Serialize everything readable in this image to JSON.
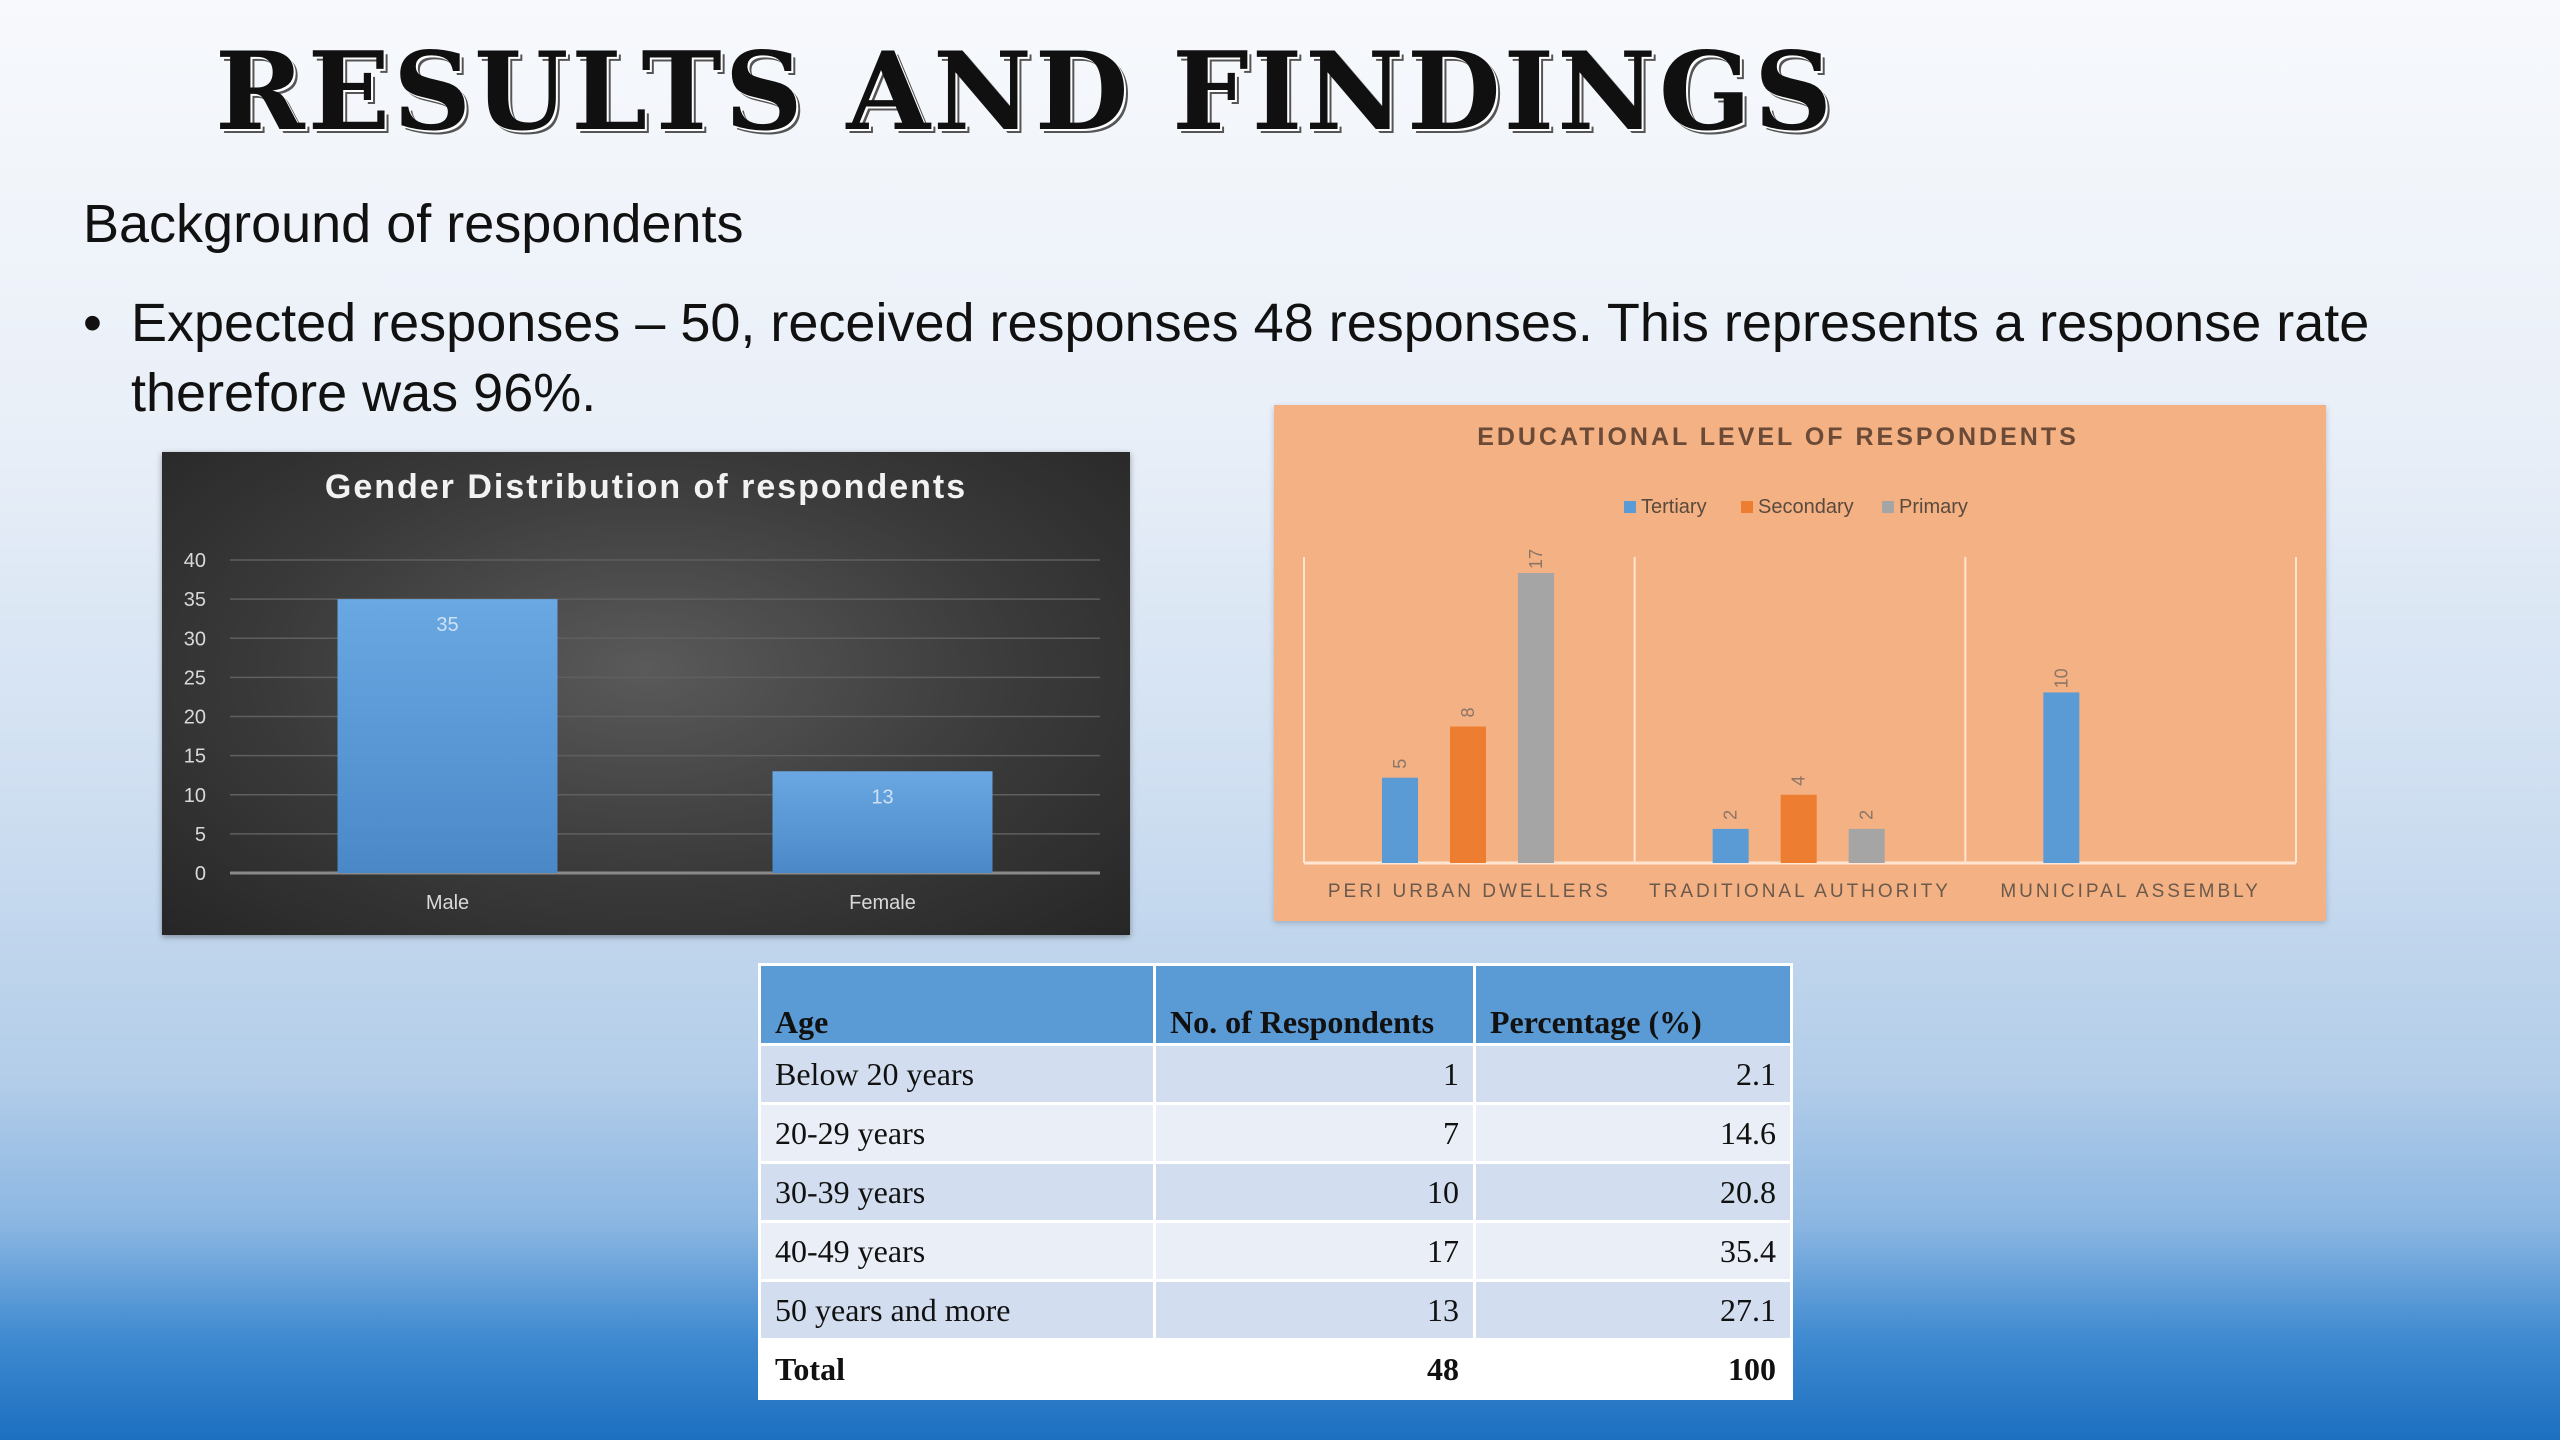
{
  "slide": {
    "title": "Results and Findings",
    "subheading": "Background of respondents",
    "bullet_marker": "•",
    "bullet_text": "Expected responses – 50, received responses 48 responses. This represents a response rate therefore was 96%."
  },
  "colors": {
    "bar_blue": "#5b9bd5",
    "secondary_orange": "#ed7d31",
    "primary_gray": "#a5a5a5",
    "orange_panel": "#f4b183",
    "table_header": "#5b9bd5"
  },
  "chart_data": [
    {
      "type": "bar",
      "title": "Gender Distribution of respondents",
      "categories": [
        "Male",
        "Female"
      ],
      "values": [
        35,
        13
      ],
      "data_labels": [
        "35",
        "13"
      ],
      "ylim": [
        0,
        40
      ],
      "yticks": [
        "0",
        "5",
        "10",
        "15",
        "20",
        "25",
        "30",
        "35",
        "40"
      ],
      "grid": true,
      "xlabel": "",
      "ylabel": ""
    },
    {
      "type": "bar",
      "title": "EDUCATIONAL LEVEL OF RESPONDENTS",
      "categories": [
        "PERI URBAN DWELLERS",
        "TRADITIONAL AUTHORITY",
        "MUNICIPAL ASSEMBLY"
      ],
      "series": [
        {
          "name": "Tertiary",
          "values": [
            5,
            2,
            10
          ]
        },
        {
          "name": "Secondary",
          "values": [
            8,
            4,
            null
          ]
        },
        {
          "name": "Primary",
          "values": [
            17,
            2,
            null
          ]
        }
      ],
      "legend": "top",
      "ylim": [
        0,
        17
      ],
      "xlabel": "",
      "ylabel": ""
    }
  ],
  "age_table": {
    "headers": [
      "Age",
      "No. of Respondents",
      "Percentage (%)"
    ],
    "rows": [
      [
        "Below 20 years",
        "1",
        "2.1"
      ],
      [
        "20-29 years",
        "7",
        "14.6"
      ],
      [
        "30-39 years",
        "10",
        "20.8"
      ],
      [
        "40-49 years",
        "17",
        "35.4"
      ],
      [
        "50 years and more",
        "13",
        "27.1"
      ]
    ],
    "total": [
      "Total",
      "48",
      "100"
    ]
  }
}
